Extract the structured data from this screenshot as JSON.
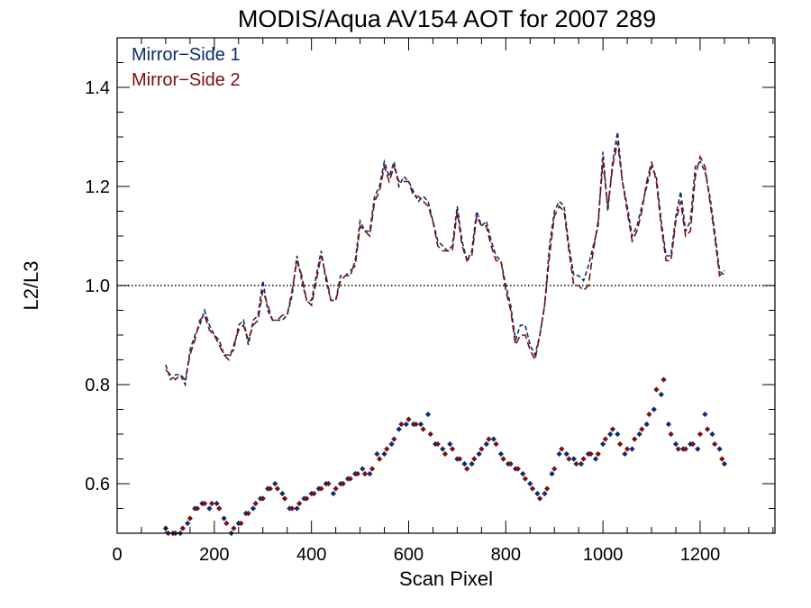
{
  "chart_data": {
    "type": "line",
    "title": "MODIS/Aqua AV154 AOT for 2007 289",
    "xlabel": "Scan Pixel",
    "ylabel": "L2/L3",
    "xlim": [
      0,
      1354
    ],
    "ylim": [
      0.5,
      1.5
    ],
    "x_ticks": [
      0,
      200,
      400,
      600,
      800,
      1000,
      1200
    ],
    "y_ticks": [
      0.6,
      0.8,
      1.0,
      1.2,
      1.4
    ],
    "x_minor_step": 50,
    "y_minor_step": 0.05,
    "reference_line": {
      "y": 1.0,
      "style": "dotted"
    },
    "legend": {
      "position": "top-left"
    },
    "colors": {
      "mirror_side_1": "#0b2d6e",
      "mirror_side_2": "#7a0e12"
    },
    "series": [
      {
        "name": "Mirror−Side 1",
        "style": "dashed-line",
        "x": [
          100,
          110,
          120,
          130,
          140,
          150,
          160,
          170,
          180,
          190,
          200,
          210,
          220,
          230,
          240,
          250,
          260,
          270,
          280,
          290,
          300,
          310,
          320,
          330,
          340,
          350,
          360,
          370,
          380,
          390,
          400,
          410,
          420,
          430,
          440,
          450,
          460,
          470,
          480,
          490,
          500,
          510,
          520,
          530,
          540,
          550,
          560,
          570,
          580,
          590,
          600,
          610,
          620,
          630,
          640,
          650,
          660,
          670,
          680,
          690,
          700,
          710,
          720,
          730,
          740,
          750,
          760,
          770,
          780,
          790,
          800,
          810,
          820,
          830,
          840,
          850,
          860,
          870,
          880,
          890,
          900,
          910,
          920,
          930,
          940,
          950,
          960,
          970,
          980,
          990,
          1000,
          1010,
          1020,
          1030,
          1040,
          1050,
          1060,
          1070,
          1080,
          1090,
          1100,
          1110,
          1120,
          1130,
          1140,
          1150,
          1160,
          1170,
          1180,
          1190,
          1200,
          1210,
          1220,
          1230,
          1240,
          1250
        ],
        "values": [
          0.84,
          0.81,
          0.82,
          0.82,
          0.8,
          0.87,
          0.9,
          0.92,
          0.95,
          0.92,
          0.9,
          0.89,
          0.86,
          0.86,
          0.87,
          0.92,
          0.93,
          0.88,
          0.93,
          0.94,
          1.01,
          0.95,
          0.93,
          0.93,
          0.93,
          0.94,
          0.98,
          1.06,
          1.01,
          0.97,
          0.97,
          1.02,
          1.07,
          1.01,
          0.97,
          0.97,
          1.02,
          1.02,
          1.02,
          1.05,
          1.13,
          1.11,
          1.11,
          1.18,
          1.2,
          1.25,
          1.22,
          1.25,
          1.2,
          1.22,
          1.21,
          1.19,
          1.17,
          1.18,
          1.17,
          1.13,
          1.09,
          1.08,
          1.07,
          1.08,
          1.16,
          1.09,
          1.05,
          1.07,
          1.15,
          1.12,
          1.13,
          1.09,
          1.06,
          1.05,
          1.0,
          0.96,
          0.89,
          0.92,
          0.92,
          0.88,
          0.86,
          0.9,
          0.96,
          1.08,
          1.15,
          1.17,
          1.16,
          1.08,
          1.02,
          1.02,
          1.01,
          1.04,
          1.08,
          1.12,
          1.27,
          1.15,
          1.25,
          1.31,
          1.21,
          1.16,
          1.1,
          1.12,
          1.16,
          1.2,
          1.24,
          1.22,
          1.13,
          1.06,
          1.06,
          1.14,
          1.19,
          1.11,
          1.13,
          1.24,
          1.25,
          1.23,
          1.18,
          1.11,
          1.03,
          1.02
        ]
      },
      {
        "name": "Mirror−Side 2",
        "style": "dashed-line",
        "x": [
          100,
          110,
          120,
          130,
          140,
          150,
          160,
          170,
          180,
          190,
          200,
          210,
          220,
          230,
          240,
          250,
          260,
          270,
          280,
          290,
          300,
          310,
          320,
          330,
          340,
          350,
          360,
          370,
          380,
          390,
          400,
          410,
          420,
          430,
          440,
          450,
          460,
          470,
          480,
          490,
          500,
          510,
          520,
          530,
          540,
          550,
          560,
          570,
          580,
          590,
          600,
          610,
          620,
          630,
          640,
          650,
          660,
          670,
          680,
          690,
          700,
          710,
          720,
          730,
          740,
          750,
          760,
          770,
          780,
          790,
          800,
          810,
          820,
          830,
          840,
          850,
          860,
          870,
          880,
          890,
          900,
          910,
          920,
          930,
          940,
          950,
          960,
          970,
          980,
          990,
          1000,
          1010,
          1020,
          1030,
          1040,
          1050,
          1060,
          1070,
          1080,
          1090,
          1100,
          1110,
          1120,
          1130,
          1140,
          1150,
          1160,
          1170,
          1180,
          1190,
          1200,
          1210,
          1220,
          1230,
          1240,
          1250
        ],
        "values": [
          0.83,
          0.82,
          0.81,
          0.82,
          0.81,
          0.86,
          0.89,
          0.93,
          0.94,
          0.91,
          0.9,
          0.88,
          0.86,
          0.85,
          0.88,
          0.91,
          0.92,
          0.89,
          0.92,
          0.93,
          0.99,
          0.96,
          0.93,
          0.93,
          0.94,
          0.94,
          0.99,
          1.05,
          1.02,
          0.97,
          0.96,
          1.01,
          1.06,
          1.02,
          0.97,
          0.97,
          1.01,
          1.02,
          1.03,
          1.04,
          1.12,
          1.11,
          1.1,
          1.17,
          1.19,
          1.24,
          1.21,
          1.24,
          1.21,
          1.21,
          1.21,
          1.18,
          1.18,
          1.17,
          1.16,
          1.13,
          1.08,
          1.07,
          1.07,
          1.07,
          1.15,
          1.08,
          1.05,
          1.06,
          1.14,
          1.12,
          1.12,
          1.08,
          1.05,
          1.05,
          0.99,
          0.95,
          0.88,
          0.9,
          0.9,
          0.87,
          0.85,
          0.9,
          0.96,
          1.06,
          1.14,
          1.16,
          1.15,
          1.07,
          1.0,
          1.0,
          0.99,
          1.0,
          1.07,
          1.13,
          1.25,
          1.16,
          1.24,
          1.29,
          1.21,
          1.15,
          1.09,
          1.11,
          1.15,
          1.21,
          1.25,
          1.21,
          1.12,
          1.05,
          1.05,
          1.13,
          1.17,
          1.1,
          1.11,
          1.22,
          1.26,
          1.24,
          1.17,
          1.1,
          1.02,
          1.03
        ]
      },
      {
        "name": "",
        "style": "scatter",
        "color_key": "mirror_side_1",
        "x": [
          100,
          115,
          130,
          145,
          160,
          175,
          190,
          205,
          220,
          235,
          250,
          265,
          280,
          295,
          310,
          325,
          340,
          355,
          370,
          385,
          400,
          415,
          430,
          445,
          460,
          475,
          490,
          505,
          520,
          535,
          550,
          565,
          580,
          595,
          610,
          625,
          640,
          655,
          670,
          685,
          700,
          715,
          730,
          745,
          760,
          775,
          790,
          805,
          820,
          835,
          850,
          865,
          880,
          895,
          910,
          925,
          940,
          955,
          970,
          985,
          1000,
          1015,
          1030,
          1045,
          1060,
          1075,
          1090,
          1105,
          1120,
          1135,
          1150,
          1165,
          1180,
          1195,
          1210,
          1225,
          1240,
          1250
        ],
        "values": [
          0.51,
          0.5,
          0.5,
          0.52,
          0.55,
          0.56,
          0.55,
          0.56,
          0.53,
          0.5,
          0.52,
          0.54,
          0.55,
          0.57,
          0.59,
          0.6,
          0.58,
          0.55,
          0.55,
          0.57,
          0.58,
          0.59,
          0.6,
          0.58,
          0.6,
          0.61,
          0.62,
          0.63,
          0.62,
          0.66,
          0.66,
          0.68,
          0.71,
          0.72,
          0.72,
          0.72,
          0.74,
          0.68,
          0.67,
          0.68,
          0.65,
          0.64,
          0.64,
          0.66,
          0.68,
          0.69,
          0.66,
          0.64,
          0.63,
          0.62,
          0.6,
          0.58,
          0.58,
          0.62,
          0.66,
          0.66,
          0.65,
          0.64,
          0.66,
          0.65,
          0.68,
          0.7,
          0.7,
          0.66,
          0.67,
          0.7,
          0.72,
          0.75,
          0.78,
          0.72,
          0.68,
          0.67,
          0.68,
          0.67,
          0.74,
          0.7,
          0.67,
          0.64
        ]
      },
      {
        "name": "",
        "style": "scatter",
        "color_key": "mirror_side_2",
        "x": [
          105,
          120,
          135,
          150,
          165,
          180,
          195,
          210,
          225,
          240,
          255,
          270,
          285,
          300,
          315,
          330,
          345,
          360,
          375,
          390,
          405,
          420,
          435,
          450,
          465,
          480,
          495,
          510,
          525,
          540,
          555,
          570,
          585,
          600,
          615,
          630,
          645,
          660,
          675,
          690,
          705,
          720,
          735,
          750,
          765,
          780,
          795,
          810,
          825,
          840,
          855,
          870,
          885,
          900,
          915,
          930,
          945,
          960,
          975,
          990,
          1005,
          1020,
          1035,
          1050,
          1065,
          1080,
          1095,
          1110,
          1125,
          1140,
          1155,
          1170,
          1185,
          1200,
          1215,
          1230,
          1245
        ],
        "values": [
          0.5,
          0.5,
          0.51,
          0.53,
          0.55,
          0.56,
          0.56,
          0.55,
          0.52,
          0.51,
          0.52,
          0.54,
          0.56,
          0.57,
          0.59,
          0.59,
          0.57,
          0.55,
          0.56,
          0.57,
          0.58,
          0.59,
          0.6,
          0.59,
          0.6,
          0.61,
          0.62,
          0.62,
          0.63,
          0.65,
          0.67,
          0.69,
          0.72,
          0.73,
          0.72,
          0.71,
          0.7,
          0.68,
          0.66,
          0.67,
          0.65,
          0.63,
          0.65,
          0.67,
          0.69,
          0.68,
          0.65,
          0.64,
          0.63,
          0.61,
          0.59,
          0.57,
          0.59,
          0.63,
          0.67,
          0.65,
          0.64,
          0.65,
          0.66,
          0.66,
          0.69,
          0.71,
          0.68,
          0.67,
          0.69,
          0.71,
          0.74,
          0.79,
          0.81,
          0.7,
          0.67,
          0.67,
          0.68,
          0.7,
          0.71,
          0.68,
          0.65
        ]
      }
    ]
  }
}
